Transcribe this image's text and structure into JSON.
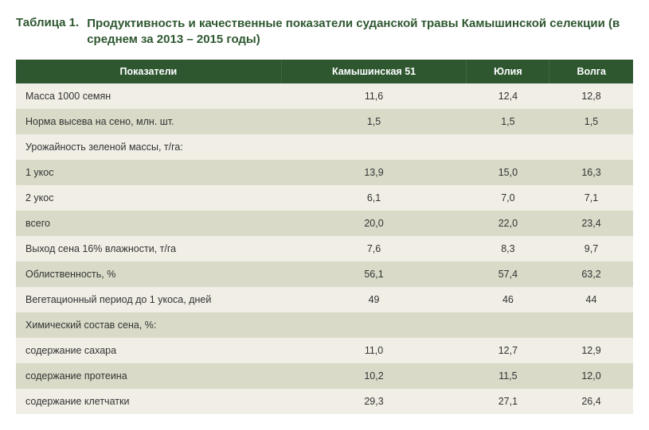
{
  "caption": {
    "label": "Таблица 1.",
    "text": "Продуктивность и качественные показатели суданской травы Камышинской селекции (в среднем за 2013 – 2015 годы)"
  },
  "table": {
    "columns": [
      "Показатели",
      "Камышинская 51",
      "Юлия",
      "Волга"
    ],
    "rows": [
      [
        "Масса 1000 семян",
        "11,6",
        "12,4",
        "12,8"
      ],
      [
        "Норма высева на сено, млн. шт.",
        "1,5",
        "1,5",
        "1,5"
      ],
      [
        "Урожайность зеленой массы, т/га:",
        "",
        "",
        ""
      ],
      [
        "1 укос",
        "13,9",
        "15,0",
        "16,3"
      ],
      [
        "2 укос",
        "6,1",
        "7,0",
        "7,1"
      ],
      [
        "всего",
        "20,0",
        "22,0",
        "23,4"
      ],
      [
        "Выход сена 16% влажности, т/га",
        "7,6",
        "8,3",
        "9,7"
      ],
      [
        "Облиственность, %",
        "56,1",
        "57,4",
        "63,2"
      ],
      [
        "Вегетационный период до 1 укоса, дней",
        "49",
        "46",
        "44"
      ],
      [
        "Химический состав сена, %:",
        "",
        "",
        ""
      ],
      [
        "содержание сахара",
        "11,0",
        "12,7",
        "12,9"
      ],
      [
        "содержание протеина",
        "10,2",
        "11,5",
        "12,0"
      ],
      [
        "содержание клетчатки",
        "29,3",
        "27,1",
        "26,4"
      ]
    ],
    "header_bg": "#2e5730",
    "header_text_color": "#ffffff",
    "row_even_bg": "#f0eee5",
    "row_odd_bg": "#d9dbc8",
    "body_fontsize": 12.5,
    "caption_color": "#2e5730"
  }
}
